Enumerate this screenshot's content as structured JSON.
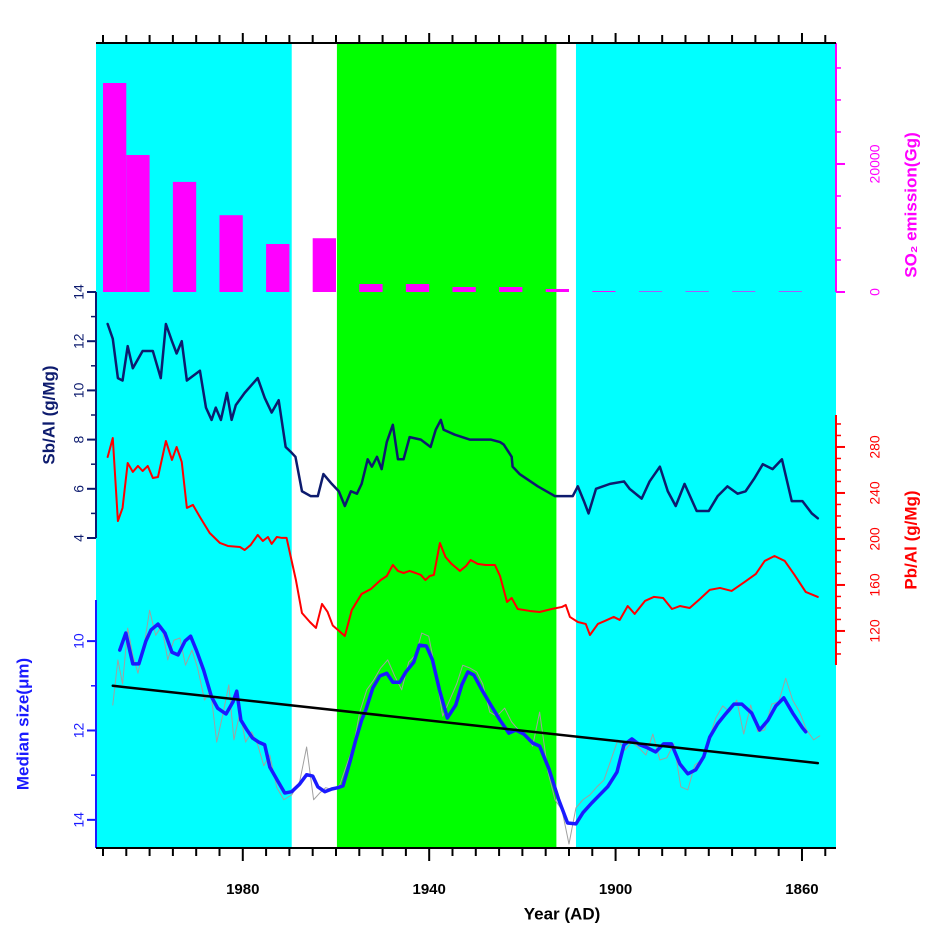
{
  "chart_data": [
    {
      "type": "bar",
      "x": [
        2007.5,
        2002.5,
        1992.5,
        1982.5,
        1972.5,
        1962.5,
        1952.5,
        1942.5,
        1932.5,
        1922.5,
        1912.5,
        1902.5,
        1892.5,
        1882.5,
        1872.5,
        1862.5
      ],
      "values": [
        32650,
        21400,
        17200,
        12000,
        7500,
        8400,
        1250,
        1250,
        780,
        780,
        470,
        150,
        100,
        100,
        100,
        100
      ],
      "color": "#ff00ff",
      "ylim": [
        0,
        38900
      ],
      "yticks": [
        0,
        20000
      ],
      "yminorticks": [
        5000,
        10000,
        15000,
        25000,
        30000,
        35000
      ],
      "ylabel": "SO₂ emission(Gg)",
      "axis_side": "right",
      "axis_color": "#ff00ff"
    },
    {
      "type": "line",
      "series": [
        {
          "color": "#0d1b6e",
          "x": [
            2009.0,
            2007.9,
            2006.8,
            2005.8,
            2004.7,
            2003.6,
            2001.5,
            1999.3,
            1997.6,
            1996.5,
            1995.2,
            1994.2,
            1993.1,
            1992.0,
            1989.2,
            1987.9,
            1986.7,
            1985.8,
            1984.7,
            1983.4,
            1982.4,
            1981.5,
            1979.6,
            1976.8,
            1975.3,
            1973.8,
            1972.3,
            1970.8,
            1969.7,
            1968.7,
            1967.3,
            1965.4,
            1963.9,
            1962.7,
            1960.9,
            1959.4,
            1958.1,
            1956.8,
            1955.5,
            1954.5,
            1953.2,
            1952.3,
            1951.2,
            1950.2,
            1949.1,
            1947.8,
            1946.7,
            1945.5,
            1944.2,
            1941.8,
            1939.7,
            1938.6,
            1937.5,
            1936.9,
            1934.5,
            1931.3,
            1926.8,
            1924.8,
            1924.0,
            1922.3,
            1922.1,
            1920.6,
            1916.7,
            1913.0,
            1909.2,
            1908.1,
            1906.8,
            1905.8,
            1904.2,
            1901.2,
            1898.2,
            1897.0,
            1894.4,
            1892.7,
            1890.5,
            1888.8,
            1887.1,
            1885.2,
            1882.6,
            1880.0,
            1878.1,
            1876.0,
            1873.8,
            1872.1,
            1870.3,
            1868.4,
            1866.3,
            1864.3,
            1862.2,
            1859.9,
            1857.9,
            1856.6
          ],
          "values": [
            12.7,
            12.1,
            10.5,
            10.4,
            11.8,
            10.9,
            11.6,
            11.6,
            10.5,
            12.7,
            12.0,
            11.5,
            12.0,
            10.4,
            10.8,
            9.3,
            8.8,
            9.3,
            8.8,
            9.9,
            8.8,
            9.4,
            9.9,
            10.5,
            9.7,
            9.1,
            9.6,
            7.7,
            7.5,
            7.3,
            5.9,
            5.7,
            5.7,
            6.6,
            6.2,
            5.9,
            5.3,
            5.9,
            5.8,
            6.2,
            7.2,
            6.9,
            7.3,
            6.8,
            7.9,
            8.6,
            7.2,
            7.2,
            8.1,
            8.0,
            7.7,
            8.4,
            8.8,
            8.4,
            8.2,
            8.0,
            8.0,
            7.9,
            7.8,
            7.3,
            6.9,
            6.6,
            6.1,
            5.7,
            5.7,
            6.1,
            5.5,
            5.0,
            6.0,
            6.2,
            6.3,
            6.0,
            5.6,
            6.3,
            6.9,
            5.9,
            5.3,
            6.2,
            5.1,
            5.1,
            5.7,
            6.1,
            5.8,
            5.9,
            6.4,
            7.0,
            6.8,
            7.2,
            5.5,
            5.5,
            5.0,
            4.8
          ]
        }
      ],
      "ylim": [
        4,
        14
      ],
      "yticks": [
        4,
        6,
        8,
        10,
        12,
        14
      ],
      "yminorticks": [
        5,
        7,
        9,
        11,
        13
      ],
      "ylabel": "Sb/Al (g/Mg)",
      "axis_side": "left",
      "axis_color": "#0d1b6e"
    },
    {
      "type": "line",
      "series": [
        {
          "color": "#ff0000",
          "x": [
            2009.0,
            2007.9,
            2006.8,
            2005.8,
            2004.7,
            2003.6,
            2002.5,
            2001.5,
            2000.4,
            1999.3,
            1998.2,
            1996.5,
            1995.2,
            1994.2,
            1993.1,
            1992.0,
            1990.7,
            1989.2,
            1987.1,
            1984.9,
            1983.2,
            1980.6,
            1979.6,
            1978.3,
            1976.8,
            1975.7,
            1974.6,
            1973.8,
            1972.7,
            1971.6,
            1970.6,
            1969.7,
            1968.6,
            1967.3,
            1965.6,
            1964.3,
            1963.0,
            1961.8,
            1960.7,
            1959.6,
            1958.1,
            1956.6,
            1954.5,
            1952.5,
            1950.4,
            1949.1,
            1947.8,
            1946.7,
            1945.5,
            1944.2,
            1942.9,
            1941.8,
            1940.8,
            1939.9,
            1939.0,
            1937.7,
            1936.5,
            1935.2,
            1933.4,
            1932.1,
            1931.1,
            1929.6,
            1927.9,
            1925.9,
            1924.8,
            1923.3,
            1922.3,
            1921.0,
            1918.4,
            1916.3,
            1913.7,
            1911.5,
            1910.7,
            1909.8,
            1908.1,
            1906.4,
            1905.5,
            1903.8,
            1902.3,
            1900.4,
            1899.1,
            1897.4,
            1895.9,
            1893.7,
            1891.8,
            1889.8,
            1887.9,
            1886.2,
            1884.1,
            1881.9,
            1879.8,
            1877.6,
            1875.1,
            1872.3,
            1869.9,
            1868.0,
            1865.9,
            1863.7,
            1861.6,
            1859.2,
            1856.6
          ],
          "values": [
            271.3,
            287.8,
            215.6,
            227.0,
            266.1,
            258.3,
            263.5,
            259.1,
            263.5,
            253.0,
            253.9,
            285.2,
            268.7,
            280.0,
            267.0,
            227.0,
            229.6,
            219.1,
            205.2,
            196.5,
            193.9,
            193.0,
            190.4,
            194.8,
            203.5,
            198.3,
            201.7,
            195.7,
            201.7,
            200.9,
            200.9,
            184.3,
            164.3,
            135.6,
            127.8,
            122.6,
            143.5,
            136.5,
            124.8,
            120.9,
            115.6,
            138.3,
            152.2,
            156.5,
            164.3,
            167.8,
            177.4,
            172.2,
            170.4,
            172.2,
            170.4,
            168.7,
            164.3,
            167.8,
            168.7,
            196.5,
            184.3,
            178.3,
            172.2,
            176.5,
            181.7,
            178.3,
            177.4,
            177.4,
            167.8,
            145.2,
            148.7,
            139.1,
            137.4,
            136.5,
            139.1,
            140.9,
            142.6,
            132.2,
            127.8,
            126.1,
            116.5,
            126.1,
            128.7,
            132.2,
            129.6,
            141.7,
            134.8,
            146.1,
            149.6,
            148.7,
            139.1,
            141.7,
            140.0,
            147.8,
            155.7,
            157.4,
            154.8,
            162.6,
            169.6,
            180.9,
            185.2,
            180.9,
            168.7,
            153.9,
            149.6
          ]
        }
      ],
      "ylim": [
        90.4,
        307.8
      ],
      "yticks": [
        120,
        160,
        200,
        240,
        280
      ],
      "yminorticks": [
        100,
        110,
        130,
        140,
        150,
        170,
        180,
        190,
        210,
        220,
        230,
        250,
        260,
        270,
        290,
        300
      ],
      "ylabel": "Pb/Al (g/Mg)",
      "axis_side": "right",
      "axis_color": "#ff0000"
    },
    {
      "type": "line",
      "series": [
        {
          "color": "#a0a0a0",
          "x": [
            2007.9,
            2006.8,
            2005.8,
            2004.7,
            2003.6,
            2002.5,
            2001.0,
            2000.0,
            1998.7,
            1997.4,
            1996.1,
            1994.8,
            1993.5,
            1992.3,
            1990.9,
            1989.7,
            1988.2,
            1986.9,
            1985.6,
            1984.3,
            1983.0,
            1981.9,
            1980.6,
            1979.4,
            1978.1,
            1976.8,
            1975.5,
            1974.2,
            1972.7,
            1971.2,
            1969.5,
            1967.8,
            1966.3,
            1964.8,
            1963.5,
            1962.2,
            1960.7,
            1959.2,
            1957.7,
            1956.2,
            1954.9,
            1953.4,
            1951.9,
            1950.4,
            1948.9,
            1947.4,
            1945.9,
            1944.4,
            1942.9,
            1941.6,
            1940.1,
            1938.6,
            1937.1,
            1935.6,
            1934.1,
            1932.8,
            1931.3,
            1929.8,
            1928.5,
            1927.0,
            1925.5,
            1923.8,
            1922.3,
            1920.8,
            1919.3,
            1917.8,
            1916.3,
            1914.5,
            1913.0,
            1911.5,
            1910.0,
            1908.5,
            1907.0,
            1905.5,
            1904.0,
            1902.5,
            1901.0,
            1899.5,
            1898.0,
            1896.5,
            1895.0,
            1893.5,
            1892.0,
            1890.5,
            1889.0,
            1887.5,
            1886.0,
            1884.5,
            1883.0,
            1881.5,
            1880.0,
            1878.5,
            1877.0,
            1875.5,
            1874.0,
            1872.5,
            1871.0,
            1869.5,
            1868.0,
            1866.5,
            1865.0,
            1863.5,
            1862.0,
            1860.5,
            1859.0,
            1857.5,
            1856.2
          ],
          "values": [
            11.43,
            10.42,
            10.96,
            9.71,
            10.31,
            10.72,
            9.98,
            9.31,
            9.87,
            9.66,
            10.42,
            9.98,
            9.93,
            10.54,
            10.2,
            10.6,
            11.32,
            11.09,
            12.26,
            11.65,
            10.98,
            12.21,
            11.59,
            12.26,
            12.03,
            12.32,
            12.79,
            12.55,
            13.28,
            13.55,
            13.44,
            13.15,
            12.37,
            13.55,
            13.4,
            13.28,
            13.33,
            13.22,
            12.77,
            12.32,
            11.59,
            11.09,
            10.87,
            10.6,
            10.42,
            10.78,
            11.09,
            10.47,
            10.31,
            9.82,
            9.89,
            10.69,
            11.68,
            11.32,
            10.96,
            10.54,
            10.6,
            10.69,
            10.96,
            11.59,
            11.68,
            11.5,
            11.81,
            11.99,
            12.1,
            12.35,
            11.59,
            12.93,
            13.55,
            13.78,
            14.54,
            13.73,
            13.55,
            13.44,
            13.26,
            13.11,
            12.66,
            12.21,
            12.44,
            12.26,
            12.39,
            12.55,
            12.08,
            12.66,
            12.61,
            12.3,
            13.26,
            13.33,
            12.77,
            12.66,
            12.21,
            11.72,
            11.45,
            11.59,
            11.32,
            12.08,
            11.43,
            12.03,
            11.99,
            11.41,
            11.36,
            10.83,
            11.32,
            11.59,
            11.99,
            12.21,
            12.12
          ]
        },
        {
          "color": "#1a1aff",
          "x": [
            2006.4,
            2005.1,
            2003.6,
            2002.3,
            2000.8,
            1999.7,
            1998.2,
            1996.7,
            1995.2,
            1993.9,
            1992.4,
            1991.2,
            1989.9,
            1988.4,
            1986.7,
            1985.4,
            1983.6,
            1982.1,
            1981.3,
            1980.4,
            1979.1,
            1977.9,
            1976.6,
            1975.3,
            1974.2,
            1972.5,
            1971.0,
            1969.5,
            1967.8,
            1966.3,
            1965.0,
            1963.9,
            1962.4,
            1960.9,
            1959.6,
            1958.5,
            1957.0,
            1955.7,
            1954.5,
            1953.6,
            1952.1,
            1950.6,
            1949.1,
            1947.8,
            1946.3,
            1945.0,
            1943.3,
            1942.1,
            1940.6,
            1939.3,
            1937.8,
            1936.1,
            1934.3,
            1933.0,
            1931.7,
            1930.4,
            1928.7,
            1927.0,
            1924.8,
            1922.9,
            1921.4,
            1919.7,
            1917.8,
            1916.3,
            1914.3,
            1912.2,
            1910.3,
            1908.5,
            1907.0,
            1905.1,
            1903.4,
            1901.7,
            1899.7,
            1898.2,
            1896.5,
            1894.8,
            1893.1,
            1891.4,
            1889.7,
            1888.0,
            1886.2,
            1884.5,
            1882.8,
            1881.1,
            1879.8,
            1878.1,
            1876.4,
            1874.6,
            1872.9,
            1870.8,
            1869.1,
            1867.3,
            1865.6,
            1863.9,
            1862.0,
            1859.9,
            1859.2
          ],
          "values": [
            10.2,
            9.82,
            10.51,
            10.51,
            10.0,
            9.75,
            9.62,
            9.82,
            10.25,
            10.31,
            10.0,
            9.89,
            10.22,
            10.65,
            11.25,
            11.5,
            11.63,
            11.36,
            11.12,
            11.77,
            11.99,
            12.17,
            12.26,
            12.32,
            12.82,
            13.13,
            13.4,
            13.37,
            13.2,
            12.99,
            13.02,
            13.26,
            13.37,
            13.31,
            13.28,
            13.24,
            12.7,
            12.19,
            11.77,
            11.54,
            11.05,
            10.78,
            10.72,
            10.92,
            10.92,
            10.69,
            10.47,
            10.09,
            10.11,
            10.42,
            11.09,
            11.72,
            11.43,
            10.98,
            10.69,
            10.76,
            11.09,
            11.39,
            11.77,
            12.06,
            11.99,
            12.08,
            12.28,
            12.35,
            12.86,
            13.55,
            14.07,
            14.09,
            13.84,
            13.62,
            13.44,
            13.26,
            12.93,
            12.32,
            12.19,
            12.32,
            12.39,
            12.48,
            12.3,
            12.3,
            12.75,
            12.97,
            12.88,
            12.59,
            12.15,
            11.85,
            11.63,
            11.41,
            11.41,
            11.61,
            11.99,
            11.77,
            11.45,
            11.27,
            11.61,
            11.94,
            12.03
          ]
        },
        {
          "color": "#000000",
          "x": [
            2007.9,
            1856.6
          ],
          "values": [
            11.0,
            12.73
          ]
        }
      ],
      "ylim": [
        14.63,
        9.08
      ],
      "yticks": [
        10,
        12,
        14
      ],
      "yminorticks": [
        11,
        13
      ],
      "ylabel": "Median size(μm)",
      "axis_side": "left",
      "axis_color": "#1a1aff",
      "xlim": [
        2011.5,
        1852.7
      ],
      "xticks": [
        1980,
        1940,
        1900,
        1860
      ],
      "xminorticks": [
        2010,
        2005,
        2000,
        1995,
        1990,
        1985,
        1975,
        1970,
        1965,
        1960,
        1955,
        1950,
        1945,
        1935,
        1930,
        1925,
        1920,
        1915,
        1910,
        1905,
        1895,
        1890,
        1885,
        1880,
        1875,
        1870,
        1865,
        1855
      ],
      "xlabel": "Year (AD)",
      "regions": [
        {
          "x": [
            2011.5,
            1969.5
          ],
          "color": "#00ffff"
        },
        {
          "x": [
            1959.8,
            1912.7
          ],
          "color": "#00ff00"
        },
        {
          "x": [
            1908.5,
            1852.7
          ],
          "color": "#00ffff"
        }
      ]
    }
  ]
}
